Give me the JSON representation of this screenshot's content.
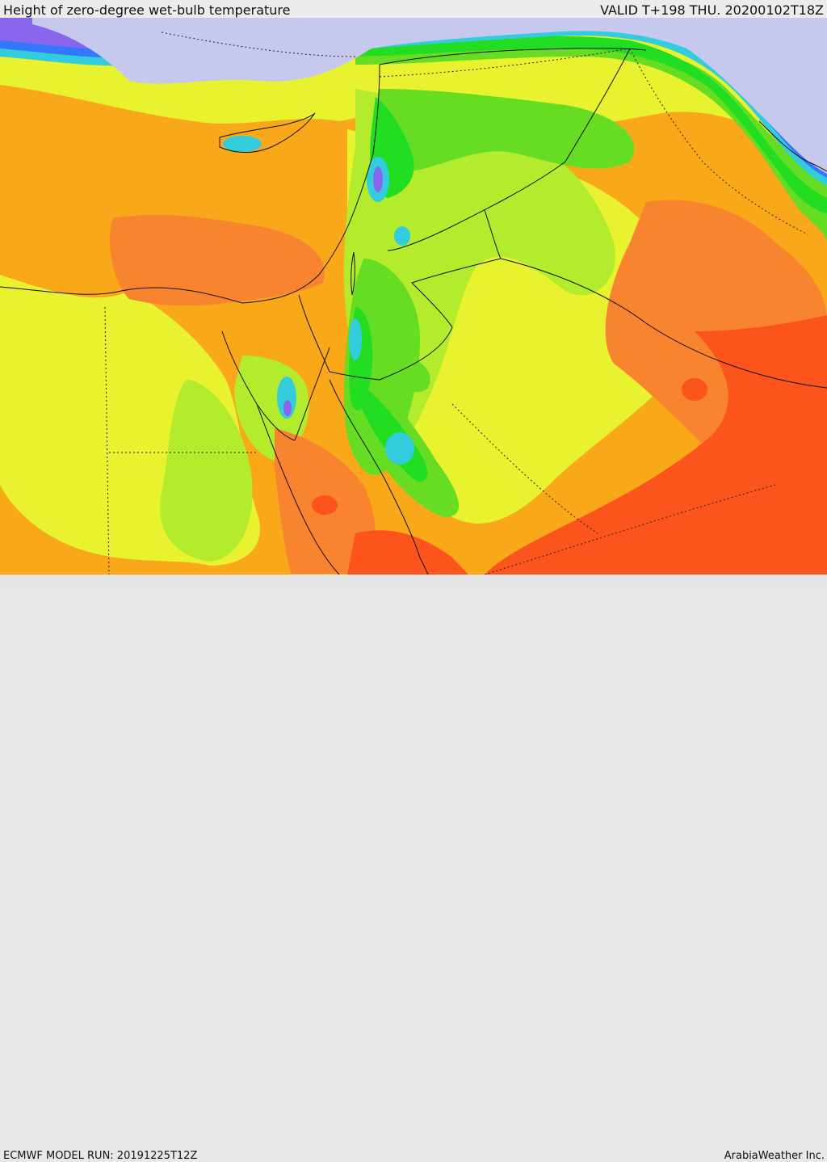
{
  "header": {
    "title": "Height of zero-degree wet-bulb temperature",
    "valid": "VALID T+198 THU. 20200102T18Z"
  },
  "footer": {
    "model_run": "ECMWF MODEL RUN: 20191225T12Z",
    "credit": "ArabiaWeather Inc."
  },
  "palette": {
    "very_high": "#fb541c",
    "high": "#f8842f",
    "upper_mid": "#f9a81a",
    "mid": "#e9f22f",
    "lower_mid": "#b2ec2c",
    "low": "#66dd22",
    "lower": "#22dd22",
    "cyan": "#33ccdd",
    "blue": "#3377ff",
    "purple": "#8866ee",
    "freezing": "#c6c8ee"
  }
}
